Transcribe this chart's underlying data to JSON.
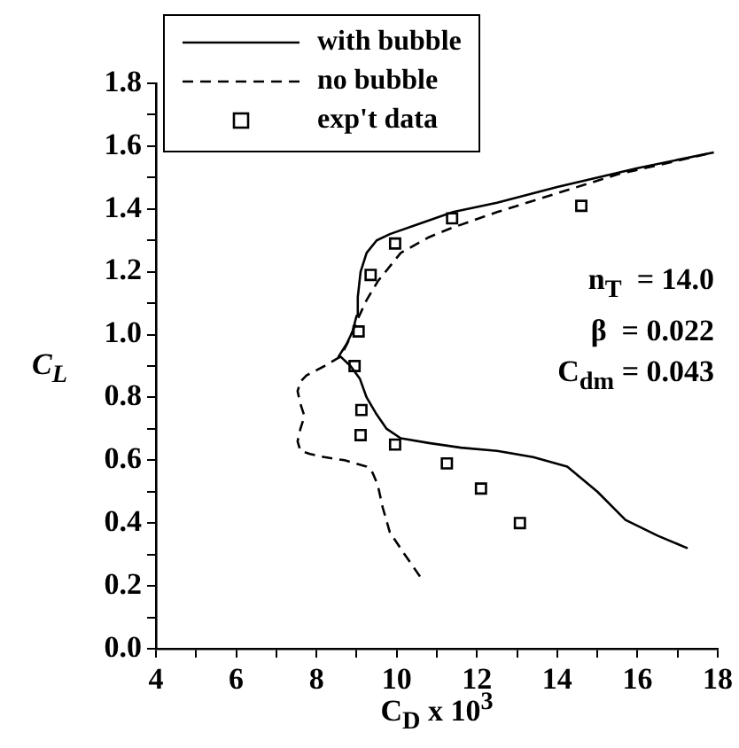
{
  "chart_data": {
    "type": "line",
    "xlabel": "C$_{D}$ x 10$^{3}$",
    "ylabel": "C$_{L}$",
    "xlim": [
      4,
      18
    ],
    "ylim": [
      0,
      1.8
    ],
    "xticks": [
      4,
      {
        "value": 5,
        "label": null
      },
      6,
      {
        "value": 7,
        "label": null
      },
      8,
      {
        "value": 9,
        "label": null
      },
      10,
      {
        "value": 11,
        "label": null
      },
      12,
      {
        "value": 13,
        "label": null
      },
      14,
      {
        "value": 15,
        "label": null
      },
      16,
      {
        "value": 17,
        "label": null
      },
      18
    ],
    "yticks": [
      {
        "value": 0,
        "label": "0.0"
      },
      {
        "value": 0.1,
        "label": null
      },
      {
        "value": 0.2,
        "label": "0.2"
      },
      {
        "value": 0.3,
        "label": null
      },
      {
        "value": 0.4,
        "label": "0.4"
      },
      {
        "value": 0.5,
        "label": null
      },
      {
        "value": 0.6,
        "label": "0.6"
      },
      {
        "value": 0.7,
        "label": null
      },
      {
        "value": 0.8,
        "label": "0.8"
      },
      {
        "value": 0.9,
        "label": null
      },
      {
        "value": 1.0,
        "label": "1.0"
      },
      {
        "value": 1.1,
        "label": null
      },
      {
        "value": 1.2,
        "label": "1.2"
      },
      {
        "value": 1.3,
        "label": null
      },
      {
        "value": 1.4,
        "label": "1.4"
      },
      {
        "value": 1.5,
        "label": null
      },
      {
        "value": 1.6,
        "label": "1.6"
      },
      {
        "value": 1.7,
        "label": null
      },
      {
        "value": 1.8,
        "label": "1.8"
      }
    ],
    "grid": false,
    "legend": "top left",
    "annotations": [
      "n$_{T}$  = 14.0",
      "β  = 0.022",
      "C$_{dm}$ = 0.043"
    ],
    "series": [
      {
        "name": "with bubble",
        "color": "#000000",
        "line_style": "solid",
        "marker": "none",
        "x": [
          17.25,
          16.5,
          15.7,
          15.0,
          14.25,
          13.4,
          12.5,
          11.6,
          10.8,
          10.1,
          9.75,
          9.48,
          9.25,
          9.08,
          8.85,
          8.6,
          8.55,
          8.75,
          8.9,
          9.0,
          9.03,
          9.1,
          9.25,
          9.5,
          9.83,
          10.5,
          11.4,
          12.5,
          14.0,
          16.0,
          17.9
        ],
        "values": [
          0.32,
          0.36,
          0.41,
          0.5,
          0.58,
          0.61,
          0.63,
          0.64,
          0.655,
          0.67,
          0.7,
          0.75,
          0.8,
          0.86,
          0.9,
          0.93,
          0.93,
          0.97,
          1.01,
          1.06,
          1.12,
          1.2,
          1.26,
          1.3,
          1.32,
          1.35,
          1.39,
          1.42,
          1.47,
          1.53,
          1.58
        ]
      },
      {
        "name": "no bubble",
        "color": "#000000",
        "line_style": "dashed",
        "marker": "none",
        "x": [
          10.58,
          10.2,
          9.83,
          9.65,
          9.53,
          9.4,
          9.25,
          8.7,
          8.2,
          7.84,
          7.6,
          7.53,
          7.6,
          7.7,
          7.6,
          7.53,
          7.6,
          7.75,
          8.2,
          8.6,
          8.8,
          9.03,
          9.25,
          9.53,
          10.1,
          10.8,
          11.38,
          12.5,
          14.0,
          15.5,
          17.9
        ],
        "values": [
          0.23,
          0.3,
          0.37,
          0.45,
          0.52,
          0.56,
          0.58,
          0.6,
          0.61,
          0.62,
          0.63,
          0.66,
          0.7,
          0.74,
          0.78,
          0.82,
          0.85,
          0.87,
          0.9,
          0.93,
          0.98,
          1.05,
          1.11,
          1.17,
          1.26,
          1.31,
          1.34,
          1.39,
          1.45,
          1.51,
          1.58
        ]
      },
      {
        "name": "exp't data",
        "type": "scatter",
        "color": "#000000",
        "marker": "square",
        "x": [
          8.95,
          9.05,
          9.35,
          9.96,
          11.38,
          14.6,
          9.12,
          9.1,
          9.96,
          11.25,
          12.1,
          13.07
        ],
        "values": [
          0.9,
          1.01,
          1.19,
          1.29,
          1.37,
          1.41,
          0.76,
          0.68,
          0.65,
          0.59,
          0.51,
          0.4
        ]
      }
    ]
  }
}
